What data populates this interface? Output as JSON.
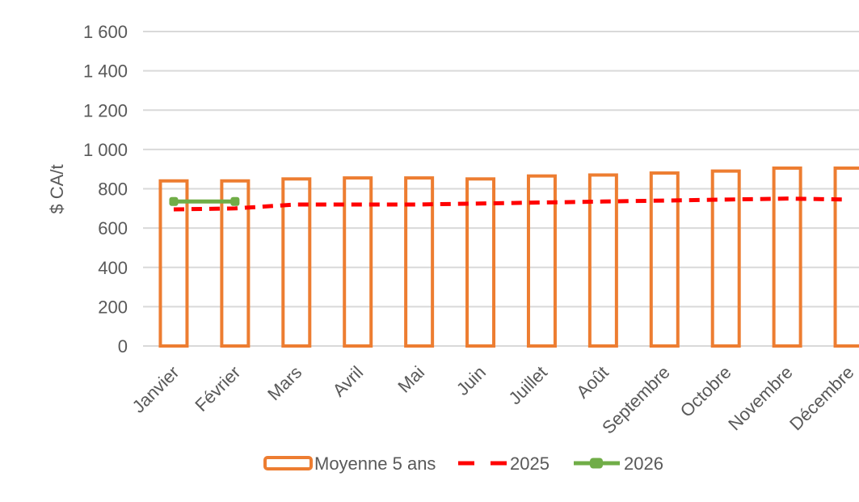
{
  "chart_data": {
    "type": "bar",
    "combo": true,
    "title": "",
    "xlabel": "",
    "ylabel": "$ CA/t",
    "ylim": [
      0,
      1600
    ],
    "y_tick_step": 200,
    "y_tick_labels": [
      "0",
      "200",
      "400",
      "600",
      "800",
      "1 000",
      "1 200",
      "1 400",
      "1 600"
    ],
    "grid": true,
    "legend_position": "bottom",
    "categories": [
      "Janvier",
      "Février",
      "Mars",
      "Avril",
      "Mai",
      "Juin",
      "Juillet",
      "Août",
      "Septembre",
      "Octobre",
      "Novembre",
      "Décembre"
    ],
    "series": [
      {
        "name": "Moyenne 5 ans",
        "type": "bar-outline",
        "color": "#ED7D31",
        "values": [
          840,
          840,
          850,
          855,
          855,
          850,
          865,
          870,
          880,
          890,
          905,
          905
        ]
      },
      {
        "name": "2025",
        "type": "dashed-line",
        "color": "#FF0000",
        "values": [
          695,
          700,
          720,
          720,
          720,
          725,
          730,
          735,
          740,
          745,
          750,
          745
        ]
      },
      {
        "name": "2026",
        "type": "line-with-markers",
        "color": "#70AD47",
        "values": [
          735,
          735,
          null,
          null,
          null,
          null,
          null,
          null,
          null,
          null,
          null,
          null
        ]
      }
    ],
    "style": {
      "text_color": "#595959",
      "gridline_color": "#D9D9D9",
      "background": "#FFFFFF"
    }
  }
}
